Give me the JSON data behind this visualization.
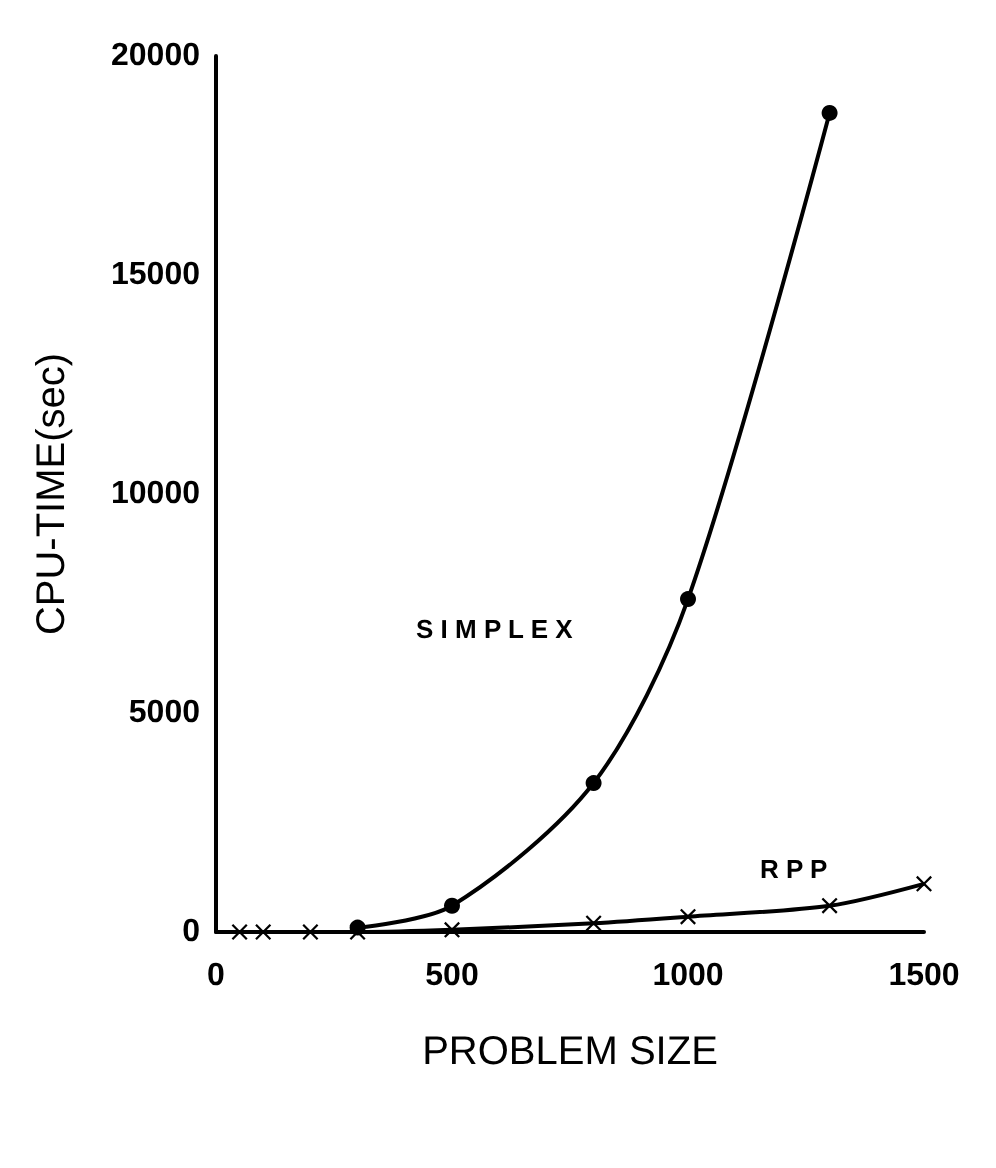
{
  "chart_data": {
    "type": "line",
    "xlabel": "PROBLEM SIZE",
    "ylabel": "CPU-TIME(sec)",
    "xlim": [
      0,
      1500
    ],
    "xticks": [
      0,
      500,
      1000,
      1500
    ],
    "ylim": [
      0,
      20000
    ],
    "yticks": [
      0,
      5000,
      10000,
      15000,
      20000
    ],
    "grid": false,
    "series": [
      {
        "color": "#000000",
        "marker": "circle",
        "x": [
          300,
          500,
          800,
          1000,
          1300
        ],
        "values": [
          100,
          600,
          3400,
          7600,
          18700
        ]
      },
      {
        "color": "#000000",
        "marker": "cross",
        "x": [
          50,
          100,
          200,
          300,
          500,
          800,
          1000,
          1300,
          1500
        ],
        "values": [
          0,
          0,
          0,
          0,
          50,
          200,
          350,
          600,
          1100
        ]
      }
    ],
    "annotations": [
      "S I M P L E X",
      "R P P"
    ]
  }
}
